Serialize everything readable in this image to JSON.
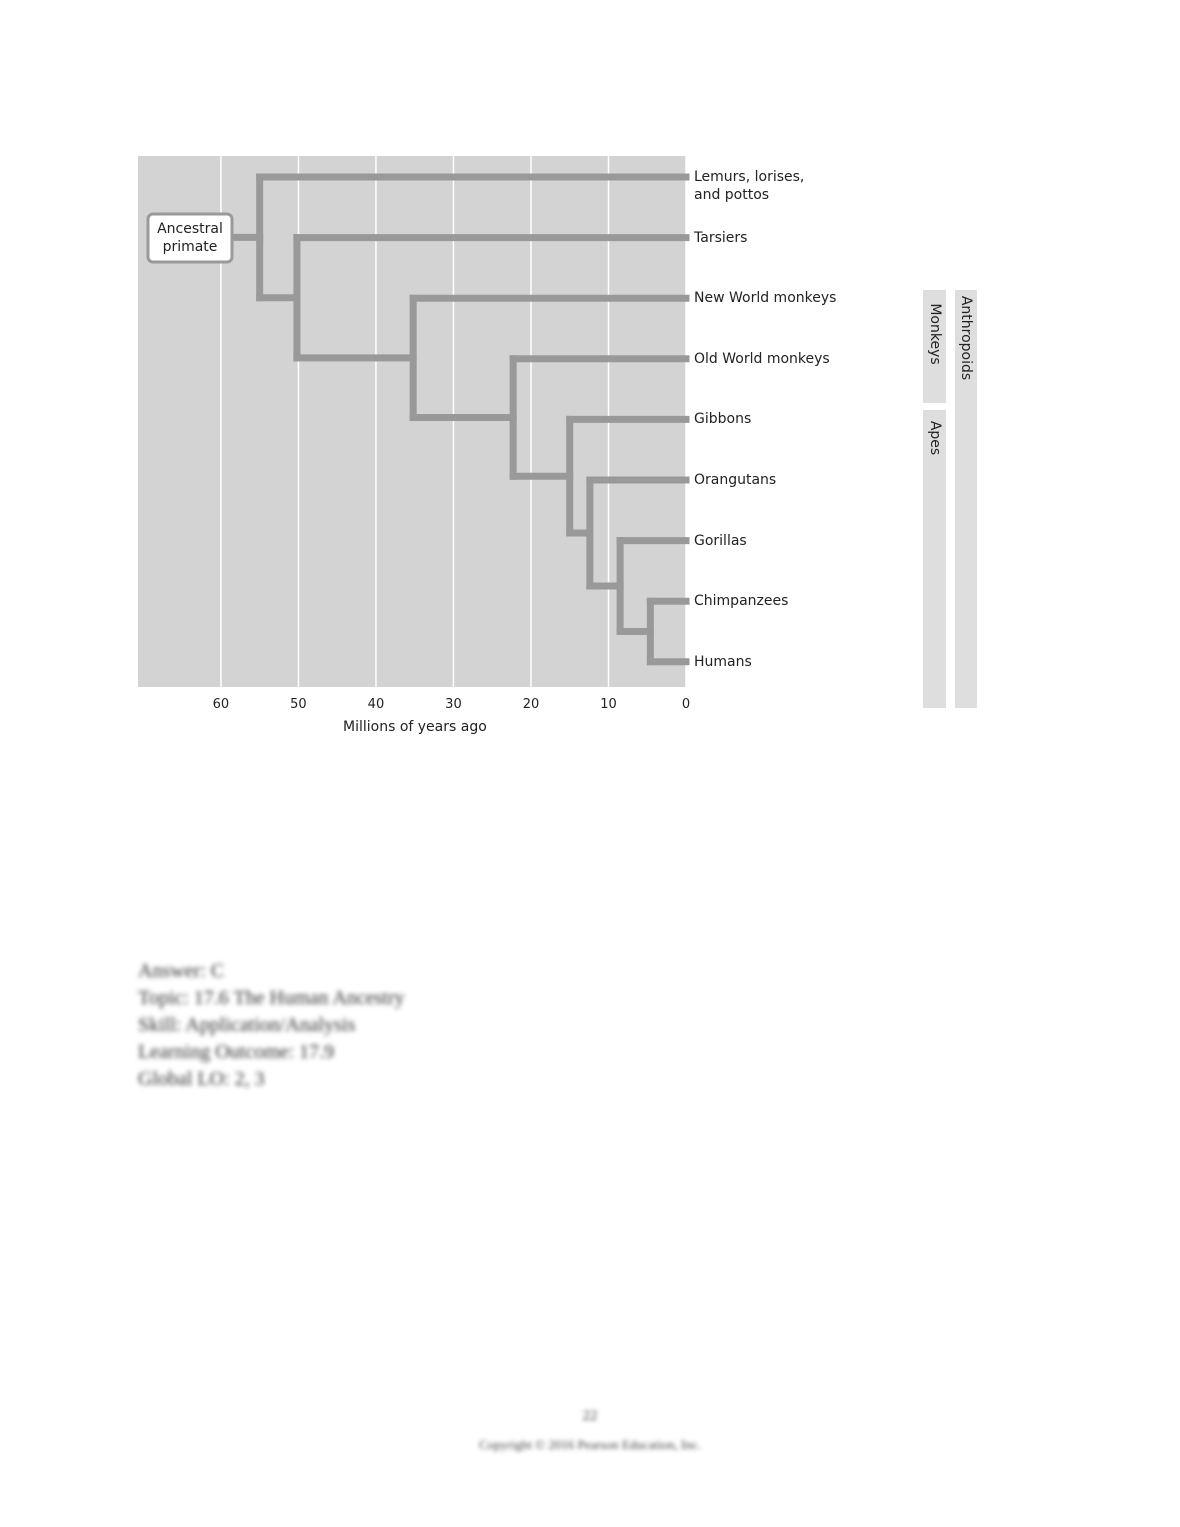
{
  "figure": {
    "ancestor": "Ancestral\nprimate",
    "xlabel": "Millions of years ago",
    "xlim": [
      70.7,
      0
    ],
    "xticks": [
      60,
      50,
      40,
      30,
      20,
      10,
      0
    ],
    "taxa": [
      "Lemurs, lorises,\nand pottos",
      "Tarsiers",
      "New World monkeys",
      "Old World monkeys",
      "Gibbons",
      "Orangutans",
      "Gorillas",
      "Chimpanzees",
      "Humans"
    ],
    "divergences": [
      55,
      50.2,
      35.2,
      22.3,
      15,
      12.4,
      8.5,
      4.6
    ],
    "groups": [
      "Monkeys",
      "Apes",
      "Anthropoids"
    ]
  },
  "notes": [
    "Answer: C",
    "Topic: 17.6 The Human Ancestry",
    "Skill: Application/Analysis",
    "Learning Outcome: 17.9",
    "Global LO: 2, 3"
  ],
  "footer": {
    "page": "22",
    "copyright": "Copyright © 2016 Pearson Education, Inc."
  }
}
